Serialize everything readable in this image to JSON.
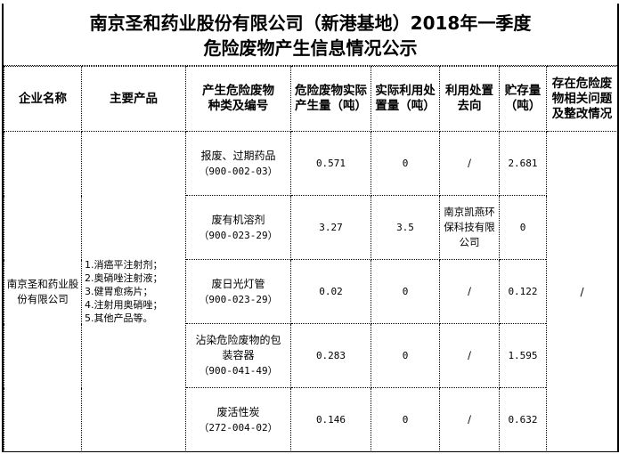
{
  "title": {
    "line1": "南京圣和药业股份有限公司（新港基地）2018年一季度",
    "line2": "危险废物产生信息情况公示"
  },
  "headers": [
    "企业名称",
    "主要产品",
    "产生危险废物种类及编号",
    "危险废物实际产生量（吨）",
    "实际利用处置量（吨）",
    "利用处置去向",
    "贮存量（吨）",
    "存在危险废物相关问题及整改情况"
  ],
  "company": "南京圣和药业股份有限公司",
  "products": [
    "1.消癌平注射剂；",
    "2.奥硝唑注射液；",
    "3.健胃愈疡片；",
    "4.注射用奥硝唑；",
    "5.其他产品等。"
  ],
  "issues": "/",
  "rows": [
    {
      "waste": "报废、过期药品",
      "code": "（900-002-03）",
      "produced": "0.571",
      "disposed": "0",
      "destination": "/",
      "stored": "2.681"
    },
    {
      "waste": "废有机溶剂",
      "code": "（900-023-29）",
      "produced": "3.27",
      "disposed": "3.5",
      "destination": "南京凯燕环保科技有限公司",
      "stored": "0"
    },
    {
      "waste": "废日光灯管",
      "code": "（900-023-29）",
      "produced": "0.02",
      "disposed": "0",
      "destination": "/",
      "stored": "0.122"
    },
    {
      "waste": "沾染危险废物的包装容器",
      "code": "（900-041-49）",
      "produced": "0.283",
      "disposed": "0",
      "destination": "/",
      "stored": "1.595"
    },
    {
      "waste": "废活性炭",
      "code": "（272-004-02）",
      "produced": "0.146",
      "disposed": "0",
      "destination": "/",
      "stored": "0.632"
    }
  ]
}
